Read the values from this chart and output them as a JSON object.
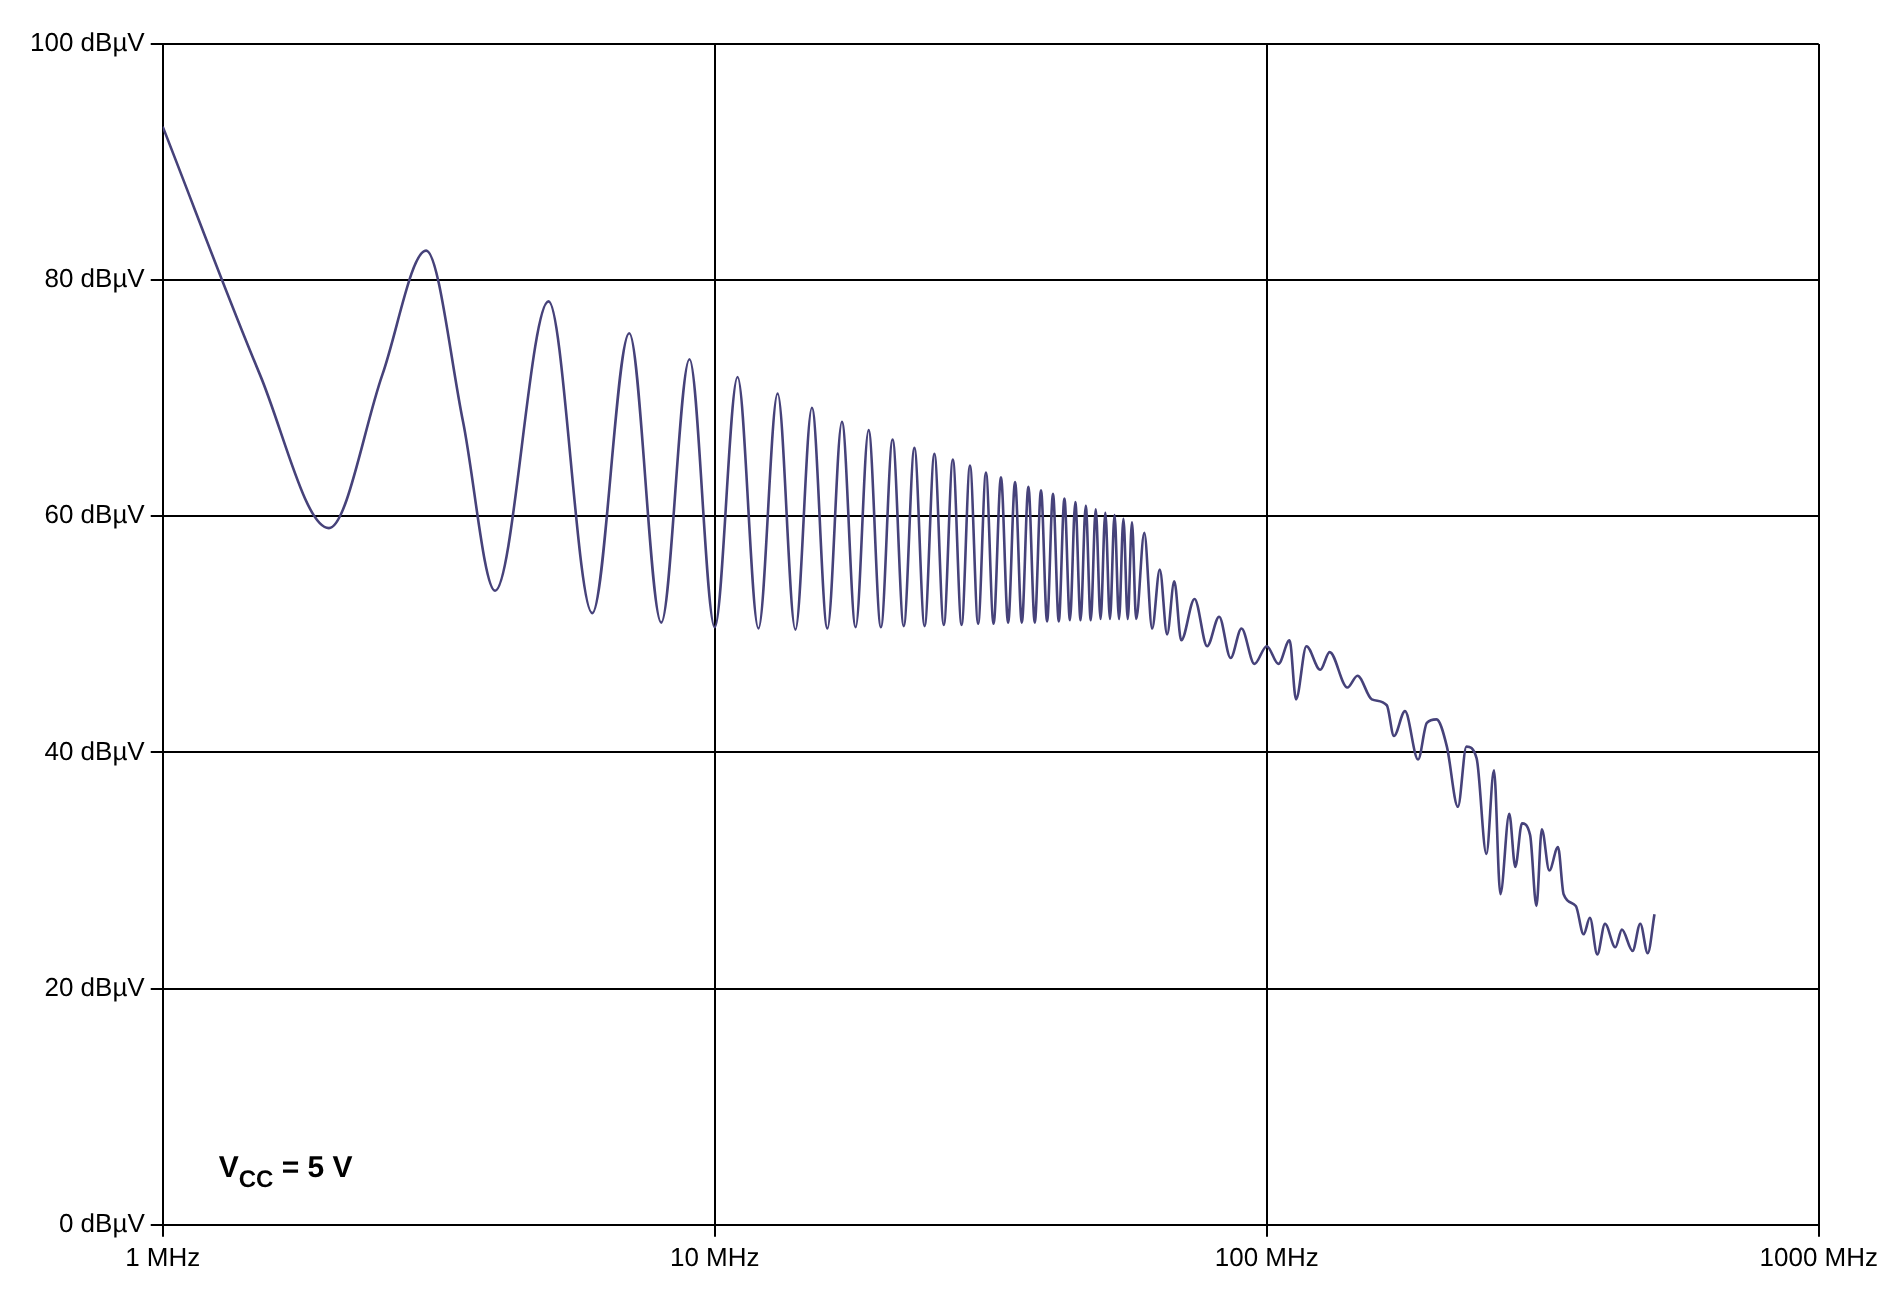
{
  "chart_data": {
    "type": "line",
    "x": [
      1,
      1.5,
      2,
      2.5,
      3,
      3.5,
      4,
      5,
      6,
      7,
      8,
      9,
      10,
      11,
      12,
      13,
      14,
      15,
      16,
      17,
      18,
      19,
      20,
      21,
      22,
      23,
      24,
      25,
      26,
      27,
      28,
      29,
      30,
      31,
      32,
      33,
      34,
      35,
      36,
      37,
      38,
      39,
      40,
      41,
      42,
      43,
      44,
      45,
      46,
      47,
      48,
      49,
      50,
      51,
      52,
      53,
      54,
      55,
      56,
      57,
      58,
      60,
      62,
      64,
      66,
      68,
      70,
      74,
      78,
      82,
      86,
      90,
      95,
      100,
      105,
      110,
      113,
      118,
      125,
      130,
      140,
      146,
      155,
      165,
      170,
      178,
      188,
      195,
      203,
      212,
      222,
      230,
      240,
      250,
      258,
      265,
      275,
      282,
      290,
      300,
      308,
      315,
      325,
      337,
      345,
      363,
      375,
      385,
      397,
      410,
      428,
      440,
      460,
      475,
      490,
      504
    ],
    "series": [
      {
        "color": "#46427a",
        "values": [
          93,
          72,
          59,
          72,
          82.5,
          68,
          53.7,
          78.2,
          51.8,
          75.5,
          51,
          73.3,
          50.6,
          71.8,
          50.5,
          70.4,
          50.4,
          69.2,
          50.5,
          68,
          50.6,
          67.3,
          50.6,
          66.5,
          50.7,
          65.8,
          50.7,
          65.3,
          50.8,
          64.8,
          50.8,
          64.3,
          50.9,
          63.7,
          50.9,
          63.3,
          51,
          62.9,
          51,
          62.5,
          51,
          62.2,
          51.1,
          61.9,
          51.1,
          61.5,
          51.2,
          61.2,
          51.2,
          60.9,
          51.2,
          60.6,
          51.3,
          60.3,
          51.3,
          60.1,
          51.3,
          59.8,
          51.3,
          59.5,
          51.3,
          58.6,
          50.5,
          55.5,
          50,
          54.5,
          49.5,
          53,
          49,
          51.5,
          48,
          50.5,
          47.5,
          49,
          47.5,
          49.5,
          44.5,
          49,
          47,
          48.5,
          45.5,
          46.5,
          44.5,
          44,
          41.4,
          43.5,
          39.4,
          42.5,
          42.8,
          40.5,
          35.4,
          40.5,
          39.5,
          31.4,
          38.5,
          28,
          34.8,
          30.3,
          34,
          33,
          27,
          33.5,
          30,
          32,
          28,
          27,
          24.6,
          26,
          22.9,
          25.5,
          23.5,
          25,
          23.2,
          25.5,
          23,
          26.3
        ]
      }
    ],
    "log": "x",
    "xlim": [
      1,
      1000
    ],
    "xticks": [
      {
        "value": 1,
        "label": "1 MHz"
      },
      {
        "value": 10,
        "label": "10 MHz"
      },
      {
        "value": 100,
        "label": "100 MHz"
      },
      {
        "value": 1000,
        "label": "1000 MHz"
      }
    ],
    "ylim": [
      0,
      100
    ],
    "yticks": [
      {
        "value": 0,
        "label": "0 dBµV"
      },
      {
        "value": 20,
        "label": "20 dBµV"
      },
      {
        "value": 40,
        "label": "40 dBµV"
      },
      {
        "value": 60,
        "label": "60 dBµV"
      },
      {
        "value": 80,
        "label": "80 dBµV"
      },
      {
        "value": 100,
        "label": "100 dBµV"
      }
    ],
    "grid": true,
    "legend": false,
    "marker": "none",
    "line_style": "solid",
    "annotations": [
      "V$_{CC}$ = 5 V"
    ]
  }
}
